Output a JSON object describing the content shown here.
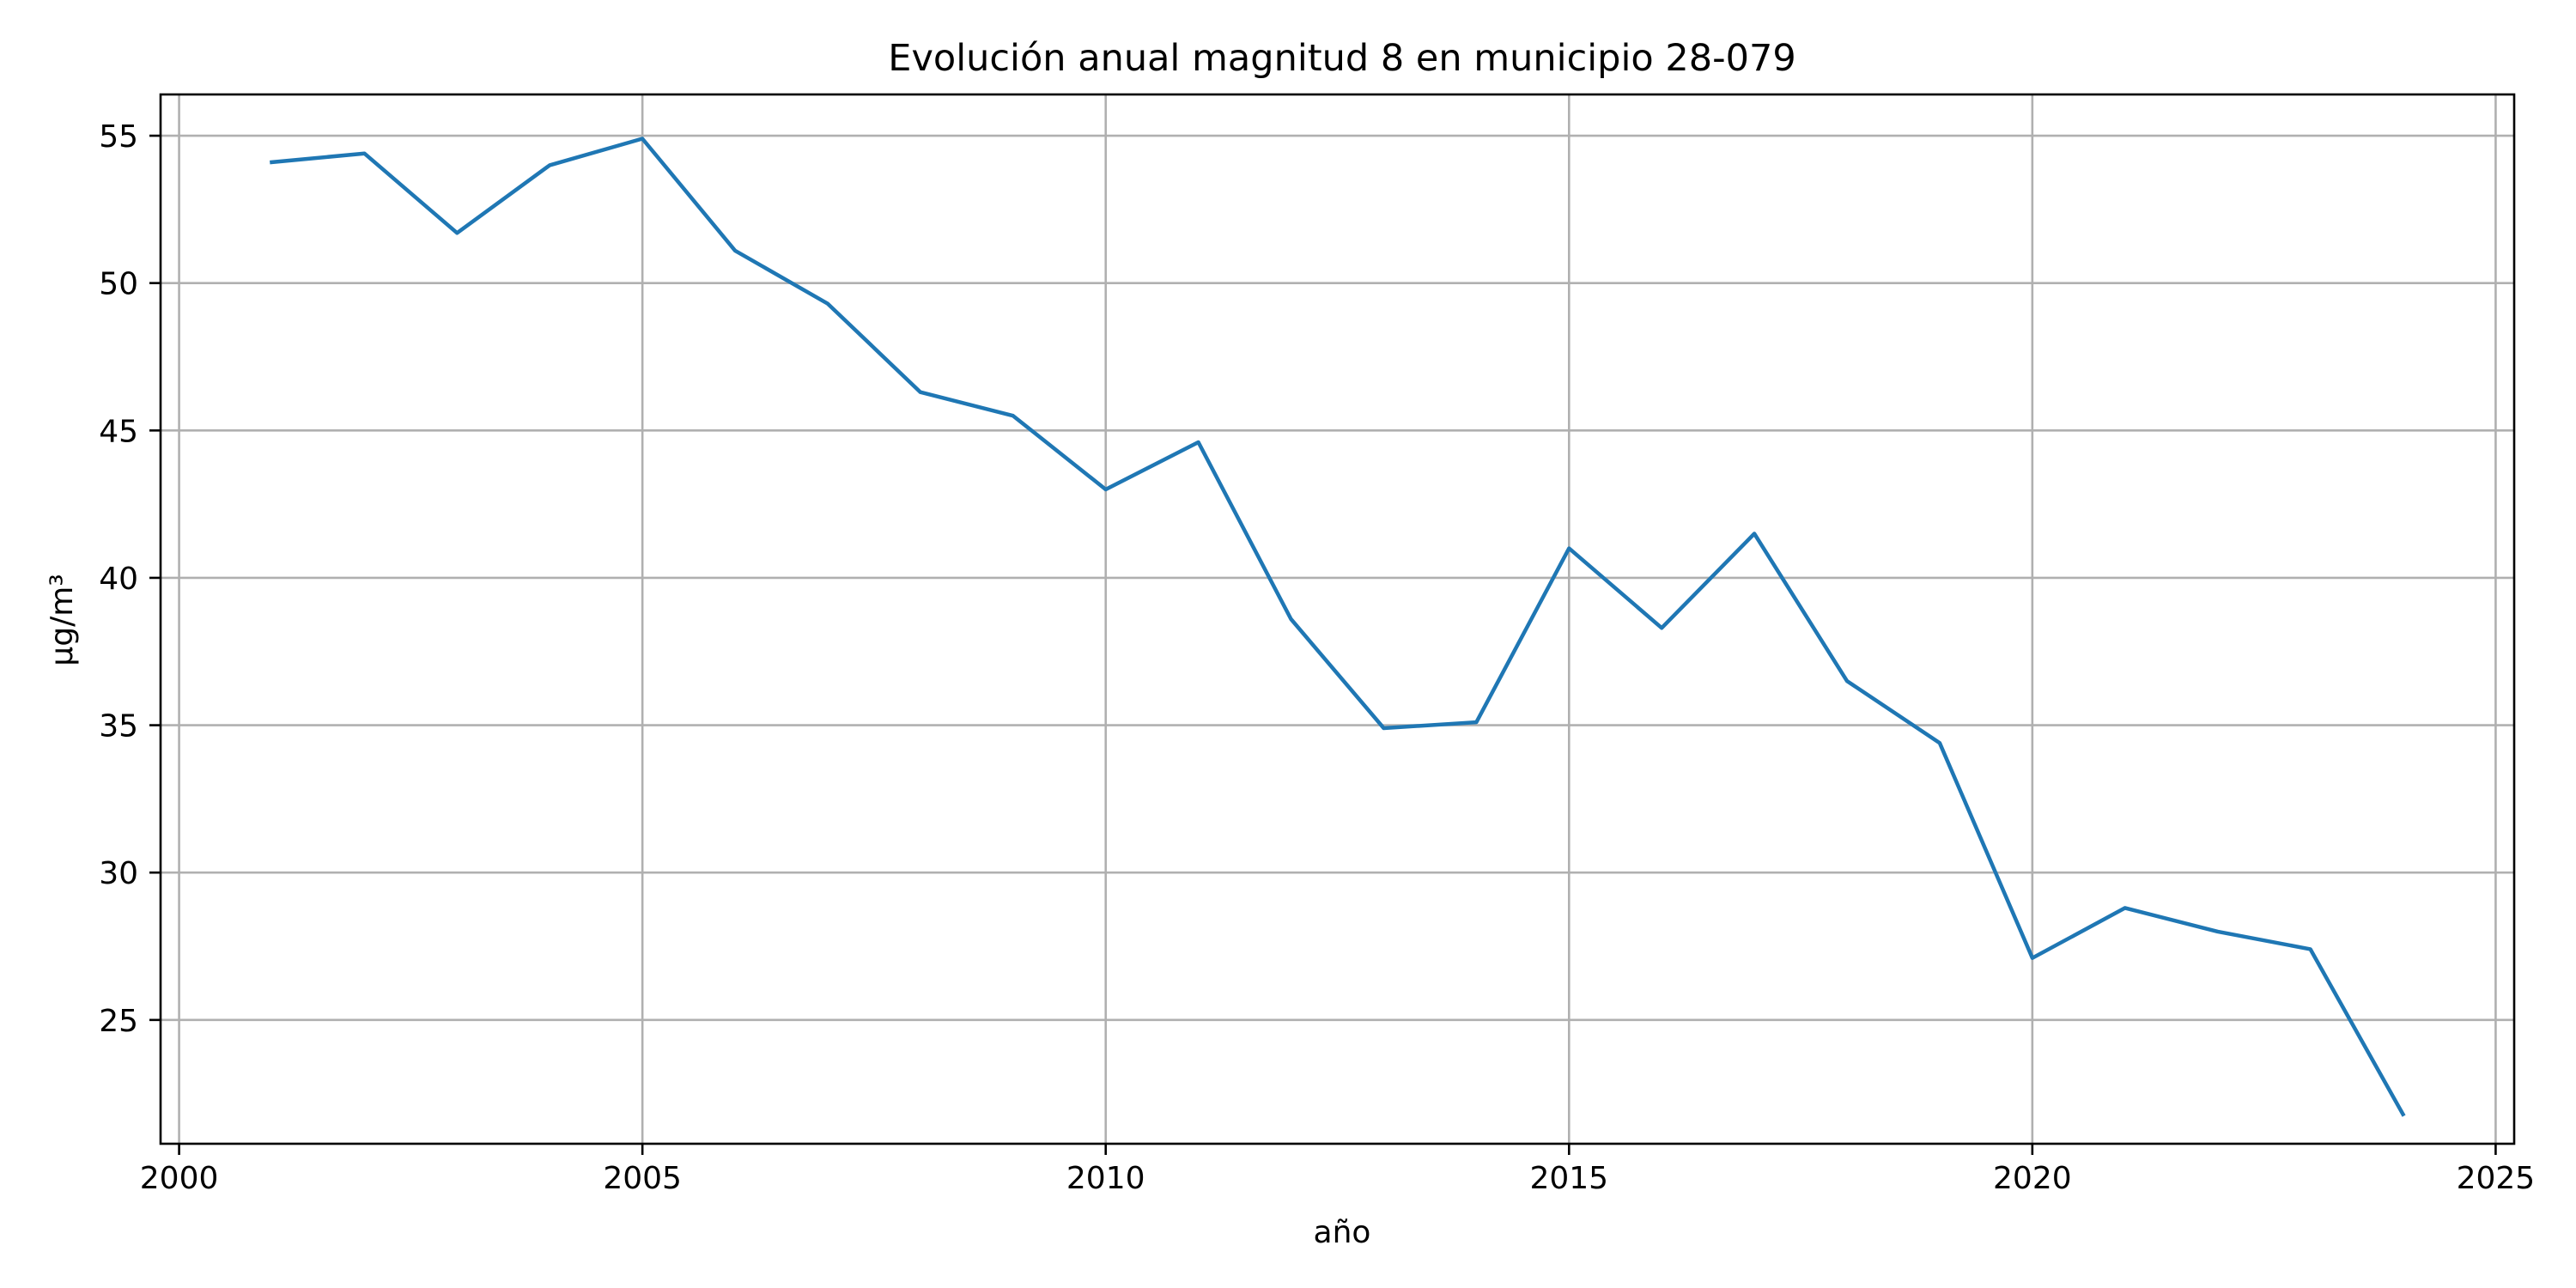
{
  "chart_data": {
    "type": "line",
    "title": "Evolución anual magnitud 8 en municipio 28-079",
    "xlabel": "año",
    "ylabel": "µg/m³",
    "xlim": [
      1999.8,
      2025.2
    ],
    "ylim": [
      20.8,
      56.4
    ],
    "xticks": [
      2000,
      2005,
      2010,
      2015,
      2020,
      2025
    ],
    "xtick_labels": [
      "2000",
      "2005",
      "2010",
      "2015",
      "2020",
      "2025"
    ],
    "yticks": [
      25,
      30,
      35,
      40,
      45,
      50,
      55
    ],
    "ytick_labels": [
      "25",
      "30",
      "35",
      "40",
      "45",
      "50",
      "55"
    ],
    "grid": true,
    "legend": "none",
    "colors": {
      "line": "#1f77b4",
      "grid": "#b0b0b0",
      "axes": "#000000"
    },
    "series": [
      {
        "x": [
          2001,
          2002,
          2003,
          2004,
          2005,
          2006,
          2007,
          2008,
          2009,
          2010,
          2011,
          2012,
          2013,
          2014,
          2015,
          2016,
          2017,
          2018,
          2019,
          2020,
          2021,
          2022,
          2023,
          2024
        ],
        "values": [
          54.1,
          54.4,
          51.7,
          54.0,
          54.9,
          51.1,
          49.3,
          46.3,
          45.5,
          43.0,
          44.6,
          38.6,
          34.9,
          35.1,
          41.0,
          38.3,
          41.5,
          36.5,
          34.4,
          27.1,
          28.8,
          28.0,
          27.4,
          21.8
        ]
      }
    ]
  }
}
